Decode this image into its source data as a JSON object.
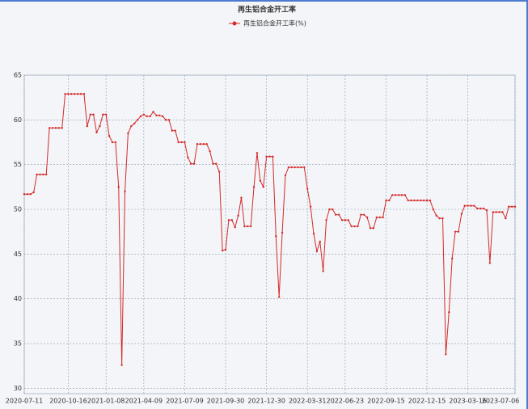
{
  "chart_data": {
    "type": "line",
    "title": "再生铝合金开工率",
    "categories": [
      "2020-07-11",
      null,
      null,
      null,
      null,
      null,
      null,
      null,
      null,
      null,
      null,
      null,
      null,
      null,
      "2020-10-16",
      null,
      null,
      null,
      null,
      null,
      null,
      null,
      null,
      null,
      null,
      null,
      "2021-01-08",
      null,
      null,
      null,
      null,
      null,
      null,
      null,
      null,
      null,
      null,
      null,
      "2021-04-09",
      null,
      null,
      null,
      null,
      null,
      null,
      null,
      null,
      null,
      null,
      null,
      null,
      "2021-07-09",
      null,
      null,
      null,
      null,
      null,
      null,
      null,
      null,
      null,
      null,
      null,
      null,
      "2021-09-30",
      null,
      null,
      null,
      null,
      null,
      null,
      null,
      null,
      null,
      null,
      null,
      null,
      "2021-12-30",
      null,
      null,
      null,
      null,
      null,
      null,
      null,
      null,
      null,
      null,
      null,
      null,
      "2022-03-31",
      null,
      null,
      null,
      null,
      null,
      null,
      null,
      null,
      null,
      null,
      null,
      "2022-06-23",
      null,
      null,
      null,
      null,
      null,
      null,
      null,
      null,
      null,
      null,
      null,
      null,
      "2022-09-15",
      null,
      null,
      null,
      null,
      null,
      null,
      null,
      null,
      null,
      null,
      null,
      null,
      "2022-12-15",
      null,
      null,
      null,
      null,
      null,
      null,
      null,
      null,
      null,
      null,
      null,
      null,
      "2023-03-16",
      null,
      null,
      null,
      null,
      null,
      null,
      null,
      null,
      null,
      null,
      null,
      null,
      null,
      null,
      "2023-07-06"
    ],
    "series": [
      {
        "name": "再生铝合金开工率(%)",
        "color": "#d42a2a",
        "values": [
          51.7,
          51.7,
          51.7,
          51.9,
          53.9,
          53.9,
          53.9,
          53.9,
          59.1,
          59.1,
          59.1,
          59.1,
          59.1,
          62.9,
          62.9,
          62.9,
          62.9,
          62.9,
          62.9,
          62.9,
          59.3,
          60.6,
          60.6,
          58.6,
          59.3,
          60.6,
          60.6,
          58.2,
          57.5,
          57.5,
          52.5,
          32.6,
          52.0,
          58.5,
          59.3,
          59.6,
          60.0,
          60.4,
          60.6,
          60.4,
          60.4,
          60.9,
          60.5,
          60.5,
          60.4,
          60.0,
          60.0,
          58.8,
          58.8,
          57.5,
          57.5,
          57.5,
          55.8,
          55.1,
          55.1,
          57.3,
          57.3,
          57.3,
          57.3,
          56.5,
          55.1,
          55.1,
          54.2,
          45.4,
          45.5,
          48.8,
          48.8,
          48.0,
          49.3,
          51.3,
          48.1,
          48.1,
          48.1,
          52.5,
          56.3,
          53.2,
          52.5,
          55.9,
          55.9,
          55.9,
          47.0,
          40.2,
          47.4,
          53.8,
          54.7,
          54.7,
          54.7,
          54.7,
          54.7,
          54.7,
          52.3,
          50.3,
          47.3,
          45.3,
          46.4,
          43.1,
          48.8,
          50.0,
          50.0,
          49.4,
          49.4,
          48.8,
          48.8,
          48.8,
          48.1,
          48.1,
          48.1,
          49.4,
          49.4,
          49.1,
          47.9,
          47.9,
          49.1,
          49.1,
          49.1,
          51.0,
          51.0,
          51.6,
          51.6,
          51.6,
          51.6,
          51.6,
          51.0,
          51.0,
          51.0,
          51.0,
          51.0,
          51.0,
          51.0,
          51.0,
          50.0,
          49.3,
          49.0,
          49.0,
          33.8,
          38.5,
          44.5,
          47.5,
          47.5,
          49.5,
          50.4,
          50.4,
          50.4,
          50.4,
          50.1,
          50.1,
          50.1,
          49.9,
          44.0,
          49.7,
          49.7,
          49.7,
          49.7,
          49.0,
          50.3,
          50.3,
          50.3
        ]
      }
    ],
    "ylim": [
      29.4,
      65
    ],
    "yticks": [
      30,
      35,
      40,
      45,
      50,
      55,
      60,
      65
    ],
    "grid": true,
    "legend": "top"
  }
}
